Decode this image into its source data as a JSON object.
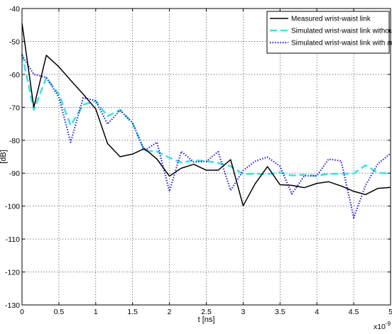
{
  "chart_data": {
    "type": "line",
    "xlabel": "t [ns]",
    "ylabel": "[dB]",
    "x_multiplier_label": "x10",
    "x_multiplier_exponent": "-9",
    "xlim": [
      0,
      5
    ],
    "ylim": [
      -130,
      -40
    ],
    "xticks": [
      "0",
      "0.5",
      "1",
      "1.5",
      "2",
      "2.5",
      "3",
      "3.5",
      "4",
      "4.5",
      "5"
    ],
    "yticks": [
      "-40",
      "-50",
      "-60",
      "-70",
      "-80",
      "-90",
      "-100",
      "-110",
      "-120",
      "-130"
    ],
    "grid": true,
    "legend_position": "top-right",
    "series": [
      {
        "name": "Measured wrist-waist link",
        "color": "#000000",
        "style": "solid",
        "x": [
          0,
          0.16,
          0.33,
          0.5,
          0.66,
          0.83,
          1.0,
          1.16,
          1.33,
          1.5,
          1.66,
          1.83,
          2.0,
          2.16,
          2.33,
          2.5,
          2.66,
          2.83,
          3.0,
          3.16,
          3.33,
          3.5,
          3.66,
          3.83,
          4.0,
          4.16,
          4.33,
          4.5,
          4.66,
          4.83,
          5.0
        ],
        "y": [
          -44.5,
          -70,
          -54.2,
          -57.7,
          -61.8,
          -66,
          -70.5,
          -81,
          -85,
          -84.2,
          -82.5,
          -85.7,
          -90.9,
          -88.5,
          -87.3,
          -89.1,
          -89.1,
          -85.9,
          -99.9,
          -93.3,
          -88,
          -93.5,
          -93.7,
          -94.4,
          -93.1,
          -92.6,
          -93.9,
          -95.5,
          -96.5,
          -94.6,
          -94.3
        ]
      },
      {
        "name": "Simulated wrist-waist link without tilt",
        "color": "#3fe0e6",
        "style": "dashed",
        "x": [
          0,
          0.16,
          0.33,
          0.5,
          0.66,
          0.83,
          1.0,
          1.16,
          1.33,
          1.5,
          1.66,
          1.83,
          2.0,
          2.16,
          2.33,
          2.5,
          2.66,
          2.83,
          3.0,
          3.16,
          3.33,
          3.5,
          3.66,
          3.83,
          4.0,
          4.16,
          4.33,
          4.5,
          4.66,
          4.83,
          5.0
        ],
        "y": [
          -53.8,
          -70.8,
          -61,
          -66,
          -75.5,
          -69.2,
          -68.1,
          -72.7,
          -70.8,
          -74.8,
          -83.2,
          -83.4,
          -85.3,
          -86.8,
          -86.1,
          -86.3,
          -86.9,
          -87.9,
          -90.3,
          -90.2,
          -90.3,
          -89.8,
          -90.7,
          -90.5,
          -90.8,
          -90.2,
          -90.2,
          -90.1,
          -87.6,
          -89.9,
          -90.1
        ]
      },
      {
        "name": "Simulated wrist-waist link with antenna tilt",
        "color": "#1b1bd8",
        "style": "dotted",
        "x": [
          0,
          0.16,
          0.33,
          0.5,
          0.66,
          0.83,
          1.0,
          1.16,
          1.33,
          1.5,
          1.66,
          1.83,
          2.0,
          2.16,
          2.33,
          2.5,
          2.66,
          2.83,
          3.0,
          3.16,
          3.33,
          3.5,
          3.66,
          3.83,
          4.0,
          4.16,
          4.33,
          4.5,
          4.66,
          4.83,
          5.0
        ],
        "y": [
          -54.2,
          -60,
          -60.9,
          -66.9,
          -80.6,
          -67.1,
          -68,
          -75.1,
          -70.9,
          -74.7,
          -83.2,
          -80.6,
          -95.5,
          -83.4,
          -86.6,
          -86.4,
          -83.5,
          -95.2,
          -89.2,
          -86.4,
          -85.1,
          -87.9,
          -96.3,
          -90.8,
          -90.8,
          -85.7,
          -86.3,
          -103.5,
          -93.7,
          -87.1,
          -84
        ]
      }
    ]
  }
}
